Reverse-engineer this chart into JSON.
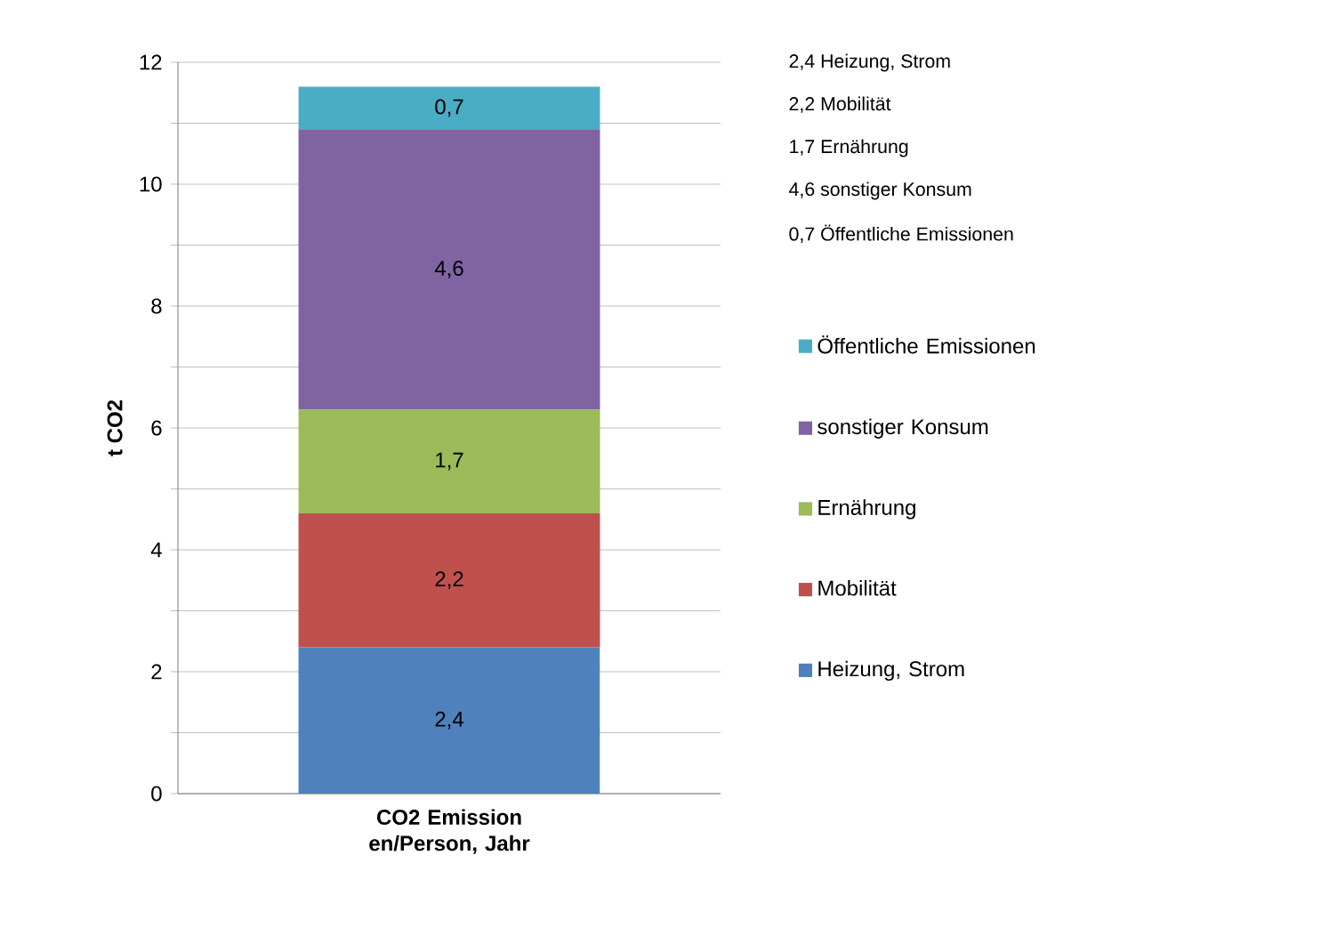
{
  "chart_data": {
    "type": "bar",
    "stacked": true,
    "categories": [
      "CO2 Emission en/Person, Jahr"
    ],
    "ylabel": "t CO2",
    "series": [
      {
        "name": "Heizung, Strom",
        "color": "#4f81bd",
        "values": [
          2.4
        ],
        "value_labels": [
          "2,4"
        ]
      },
      {
        "name": "Mobilität",
        "color": "#c0504d",
        "values": [
          2.2
        ],
        "value_labels": [
          "2,2"
        ]
      },
      {
        "name": "Ernährung",
        "color": "#9bbb59",
        "values": [
          1.7
        ],
        "value_labels": [
          "1,7"
        ]
      },
      {
        "name": "sonstiger Konsum",
        "color": "#8064a2",
        "values": [
          4.6
        ],
        "value_labels": [
          "4,6"
        ]
      },
      {
        "name": "Öffentliche Emissionen",
        "color": "#4bacc6",
        "values": [
          0.7
        ],
        "value_labels": [
          "0,7"
        ]
      }
    ],
    "ylim": [
      0,
      12
    ],
    "yticks": [
      0,
      {
        "value": 1,
        "label": null
      },
      2,
      {
        "value": 3,
        "label": null
      },
      4,
      {
        "value": 5,
        "label": null
      },
      6,
      {
        "value": 7,
        "label": null
      },
      8,
      {
        "value": 9,
        "label": null
      },
      10,
      {
        "value": 11,
        "label": null
      },
      12
    ],
    "grid": "y",
    "legend": "right",
    "annotations": [
      "2,4 Heizung, Strom",
      "2,2 Mobilität",
      "1,7 Ernährung",
      "4,6 sonstiger Konsum",
      "0,7 Öffentliche Emissionen"
    ]
  }
}
